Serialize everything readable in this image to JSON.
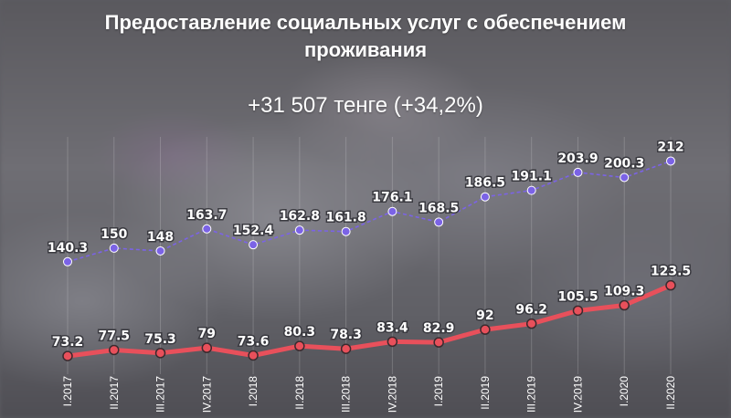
{
  "title_lines": [
    "Предоставление социальных услуг с обеспечением",
    "проживания"
  ],
  "subtitle": "+31 507 тенге (+34,2%)",
  "colors": {
    "top_series": "#7b63e6",
    "bottom_series": "#e8505b",
    "grid": "#ffffff"
  },
  "chart_data": {
    "type": "line",
    "title": "Предоставление социальных услуг с обеспечением проживания",
    "subtitle": "+31 507 тенге (+34,2%)",
    "categories": [
      "I.2017",
      "II.2017",
      "III.2017",
      "IV.2017",
      "I.2018",
      "II.2018",
      "III.2018",
      "IV.2018",
      "I.2019",
      "II.2019",
      "III.2019",
      "IV.2019",
      "I.2020",
      "II.2020"
    ],
    "series": [
      {
        "values": [
          140.3,
          150,
          148,
          163.7,
          152.4,
          162.8,
          161.8,
          176.1,
          168.5,
          186.5,
          191.1,
          203.9,
          200.3,
          212
        ],
        "style": "dashed",
        "color": "#7b63e6"
      },
      {
        "values": [
          73.2,
          77.5,
          75.3,
          79,
          73.6,
          80.3,
          78.3,
          83.4,
          82.9,
          92,
          96.2,
          105.5,
          109.3,
          123.5
        ],
        "style": "solid",
        "color": "#e8505b"
      }
    ],
    "data_labels": [
      [
        "140.3",
        "150",
        "148",
        "163.7",
        "152.4",
        "162.8",
        "161.8",
        "176.1",
        "168.5",
        "186.5",
        "191.1",
        "203.9",
        "200.3",
        "212"
      ],
      [
        "73.2",
        "77.5",
        "75.3",
        "79",
        "73.6",
        "80.3",
        "78.3",
        "83.4",
        "82.9",
        "92",
        "96.2",
        "105.5",
        "109.3",
        "123.5"
      ]
    ],
    "ylim": [
      60,
      215
    ],
    "grid": "vertical lines",
    "legend": "none"
  }
}
